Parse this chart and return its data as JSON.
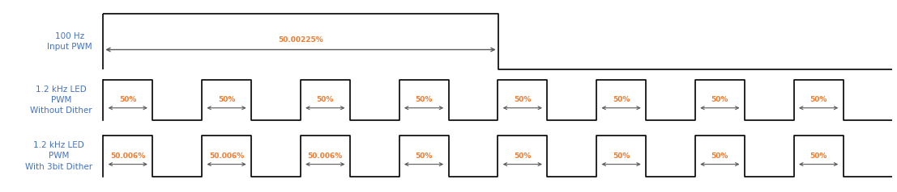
{
  "fig_width": 11.07,
  "fig_height": 2.38,
  "dpi": 100,
  "background": "#ffffff",
  "label_color": "#4472c4",
  "signal_color": "#000000",
  "annotation_color": "#ed7d31",
  "arrow_color": "#595959",
  "row1_label": "100 Hz\nInput PWM",
  "row2_label": "1.2 kHz LED\nPWM\nWithout Dither",
  "row3_label": "1.2 kHz LED\nPWM\nWith 3bit Dither",
  "row1_annotation": "50.00225%",
  "row2_annotations": [
    "50%",
    "50%",
    "50%",
    "50%",
    "50%",
    "50%",
    "50%",
    "50%"
  ],
  "row3_annotations": [
    "50.006%",
    "50.006%",
    "50.006%",
    "50%",
    "50%",
    "50%",
    "50%",
    "50%"
  ],
  "num_pulses": 8,
  "label_fontsize": 7.5,
  "annotation_fontsize": 6.5,
  "line_width": 1.2
}
